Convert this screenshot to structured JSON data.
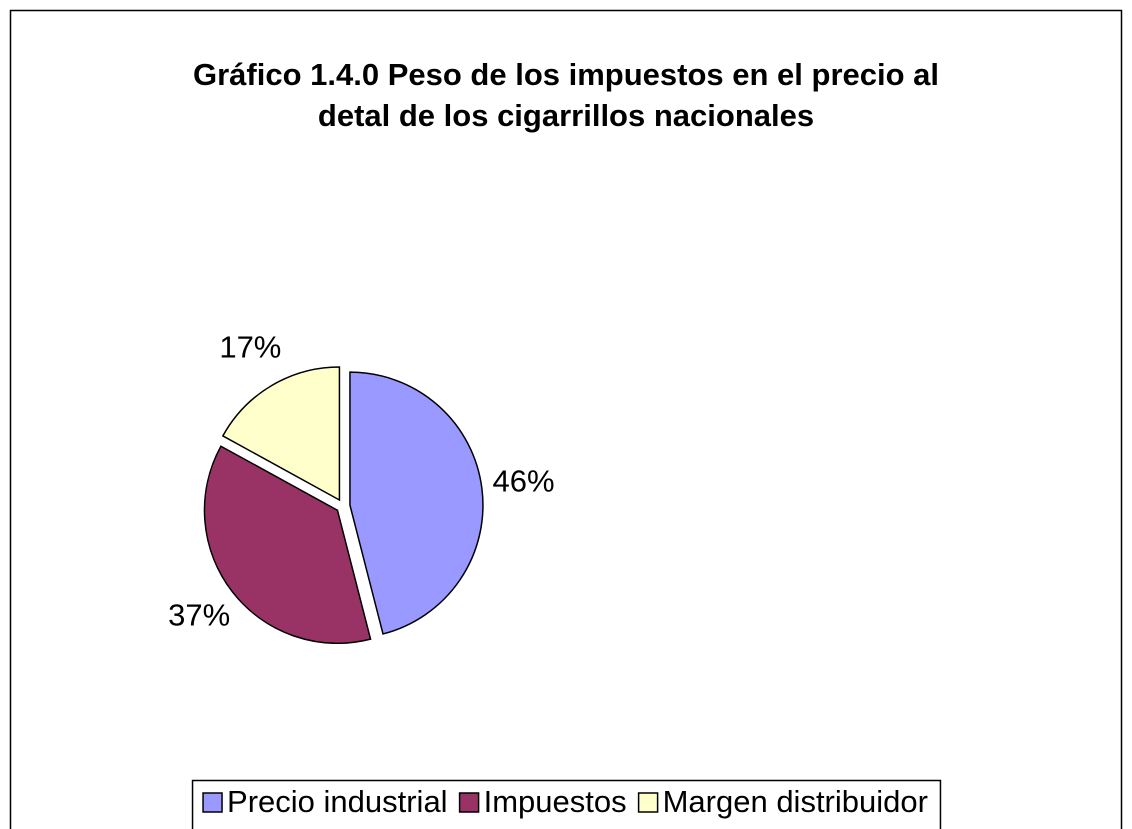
{
  "chart_data": {
    "type": "pie",
    "title": [
      "Gráfico 1.4.0  Peso de los impuestos en el precio al",
      "detal de los cigarrillos nacionales"
    ],
    "categories": [
      "Precio industrial",
      "Impuestos",
      "Margen distribuidor"
    ],
    "values": [
      46,
      37,
      17
    ],
    "value_labels": [
      "46%",
      "37%",
      "17%"
    ],
    "colors": [
      "#9999ff",
      "#993366",
      "#ffffcc"
    ],
    "legend": "bottom"
  }
}
